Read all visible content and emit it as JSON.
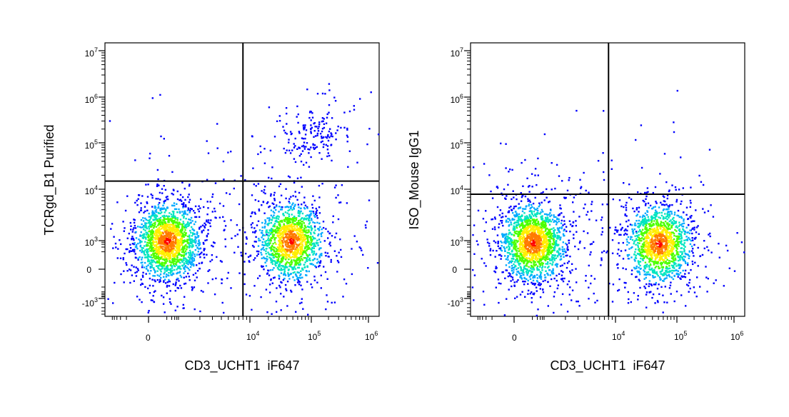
{
  "chart_data": [
    {
      "type": "scatter",
      "subtype": "flow-cytometry-density-dot-plot",
      "xlabel": "CD3_UCHT1  iF647",
      "ylabel": "TCRgd_B1 Purified",
      "x_scale": "biexponential",
      "y_scale": "biexponential",
      "x_tick_labels": [
        "0",
        "10^4",
        "10^5",
        "10^6"
      ],
      "y_tick_labels": [
        "-10^3",
        "0",
        "10^3",
        "10^4",
        "10^5",
        "10^6",
        "10^7"
      ],
      "quadrant_gate": {
        "x": 8000,
        "y": 15000
      },
      "density_colormap": [
        "#0000ff",
        "#00aaff",
        "#00e5c0",
        "#4cff00",
        "#ffee00",
        "#ff7a00",
        "#ff0000"
      ],
      "populations": [
        {
          "center_x": 200,
          "center_y": 1000,
          "relative_size": 1.0,
          "description": "CD3-negative, TCRgd-negative"
        },
        {
          "center_x": 45000,
          "center_y": 1000,
          "relative_size": 0.8,
          "description": "CD3-positive, TCRgd-negative"
        },
        {
          "center_x": 100000,
          "center_y": 150000,
          "relative_size": 0.1,
          "description": "CD3-positive, TCRgd-positive"
        }
      ]
    },
    {
      "type": "scatter",
      "subtype": "flow-cytometry-density-dot-plot",
      "xlabel": "CD3_UCHT1  iF647",
      "ylabel": "ISO_Mouse IgG1",
      "x_scale": "biexponential",
      "y_scale": "biexponential",
      "x_tick_labels": [
        "0",
        "10^4",
        "10^5",
        "10^6"
      ],
      "y_tick_labels": [
        "-10^3",
        "0",
        "10^3",
        "10^4",
        "10^5",
        "10^6",
        "10^7"
      ],
      "quadrant_gate": {
        "x": 8000,
        "y": 8000
      },
      "density_colormap": [
        "#0000ff",
        "#00aaff",
        "#00e5c0",
        "#4cff00",
        "#ffee00",
        "#ff7a00",
        "#ff0000"
      ],
      "populations": [
        {
          "center_x": 200,
          "center_y": 800,
          "relative_size": 1.0,
          "description": "CD3-negative, isotype-negative"
        },
        {
          "center_x": 50000,
          "center_y": 700,
          "relative_size": 0.8,
          "description": "CD3-positive, isotype-negative"
        }
      ]
    }
  ]
}
